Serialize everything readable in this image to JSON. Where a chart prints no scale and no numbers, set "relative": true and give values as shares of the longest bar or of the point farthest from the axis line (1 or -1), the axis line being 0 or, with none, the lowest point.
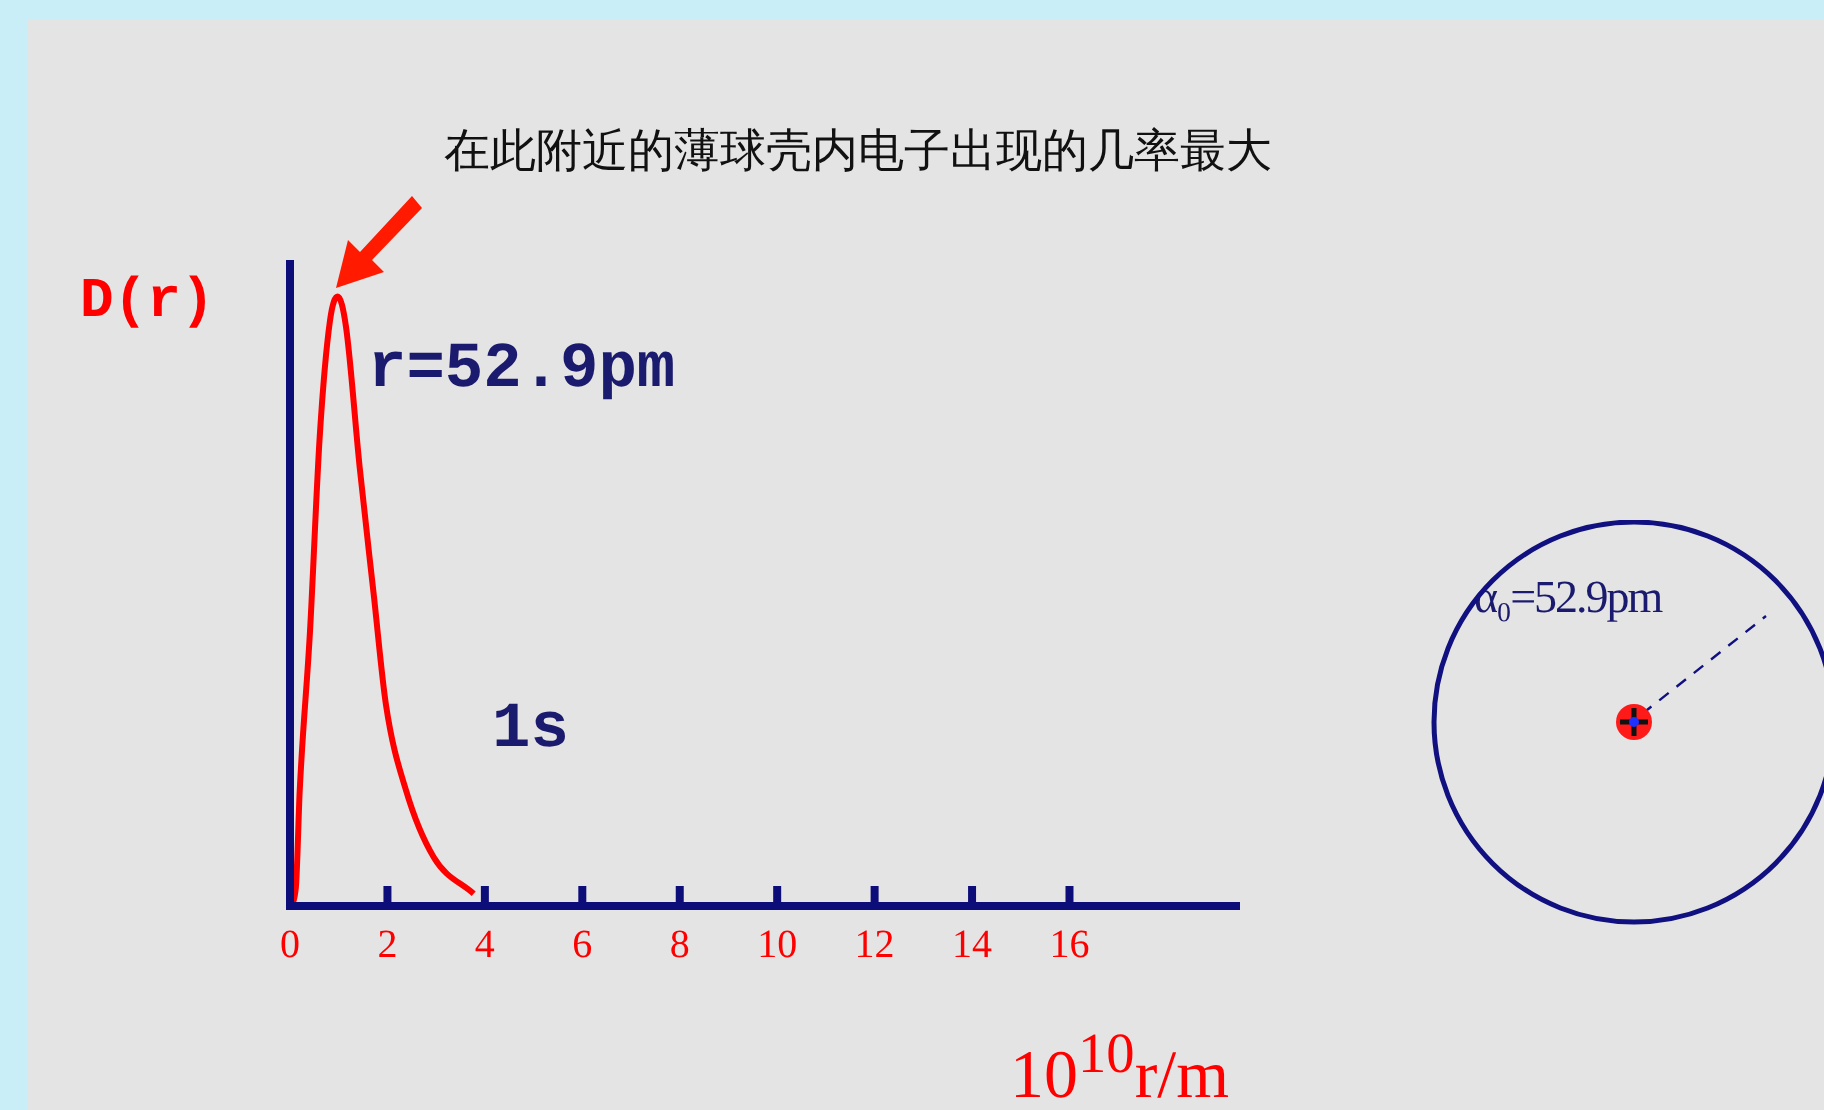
{
  "chart_data": {
    "type": "line",
    "title": "在此附近的薄球壳内电子出现的几率最大",
    "xlabel": "10$^{10}$r/m",
    "ylabel": "D(r)",
    "relative": true,
    "xlim": [
      0,
      19.5
    ],
    "xticks": [
      0,
      2,
      4,
      6,
      8,
      10,
      12,
      14,
      16
    ],
    "tick_labels": "x",
    "grid": false,
    "legend": false,
    "marker": "none",
    "line_style": "solid",
    "annotations": [
      "r=52.9pm",
      "α₀=52.9pm"
    ],
    "series": [
      {
        "name": "1s",
        "color": "#ff0000",
        "x": [
          0,
          0.12,
          0.2,
          0.41,
          0.61,
          0.82,
          0.98,
          1.15,
          1.43,
          1.72,
          1.97,
          2.38,
          2.95,
          3.77
        ],
        "values": [
          0,
          0.03,
          0.19,
          0.45,
          0.77,
          0.96,
          1,
          0.95,
          0.72,
          0.51,
          0.33,
          0.19,
          0.08,
          0.02
        ]
      }
    ]
  }
}
